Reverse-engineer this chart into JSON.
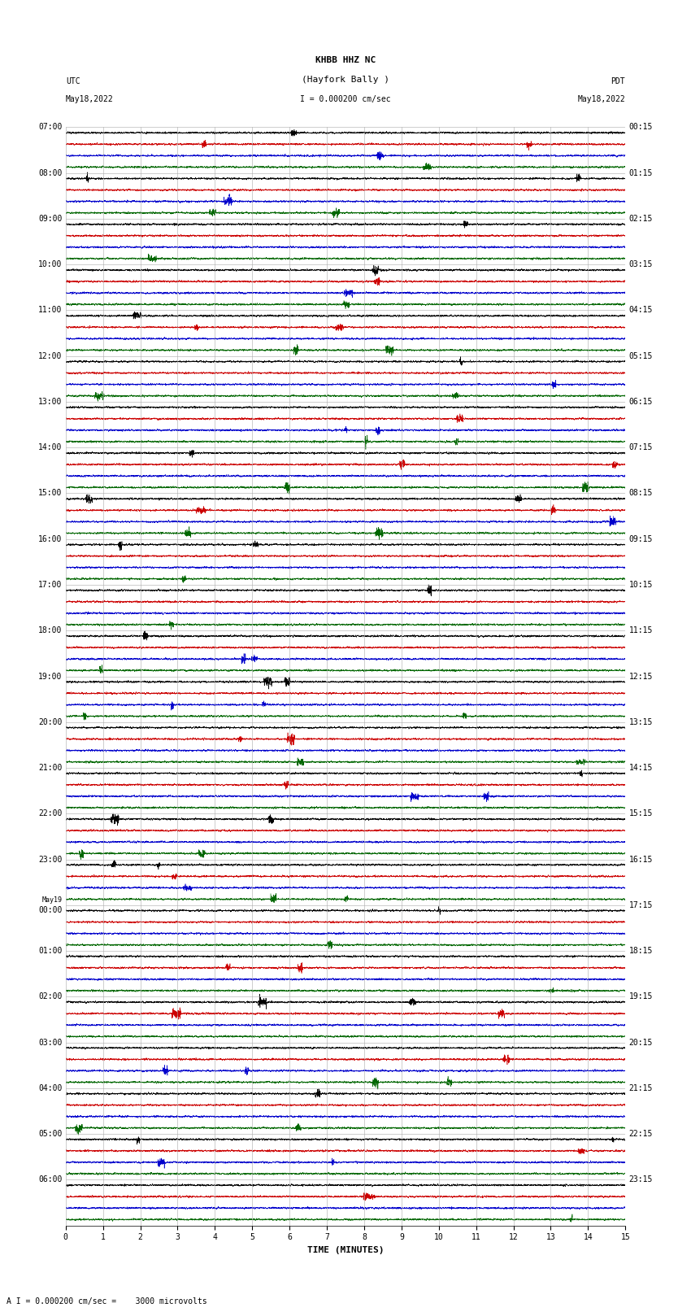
{
  "title_line1": "KHBB HHZ NC",
  "title_line2": "(Hayfork Bally )",
  "scale_text": "I = 0.000200 cm/sec",
  "bottom_text": "A I = 0.000200 cm/sec =    3000 microvolts",
  "utc_label": "UTC",
  "pdt_label": "PDT",
  "date_left": "May18,2022",
  "date_right": "May18,2022",
  "xlabel": "TIME (MINUTES)",
  "bg_color": "#ffffff",
  "trace_colors": [
    "#000000",
    "#cc0000",
    "#0000cc",
    "#006600"
  ],
  "num_rows": 24,
  "minutes_per_row": 15,
  "left_times_utc": [
    "07:00",
    "08:00",
    "09:00",
    "10:00",
    "11:00",
    "12:00",
    "13:00",
    "14:00",
    "15:00",
    "16:00",
    "17:00",
    "18:00",
    "19:00",
    "20:00",
    "21:00",
    "22:00",
    "23:00",
    "May19|00:00",
    "01:00",
    "02:00",
    "03:00",
    "04:00",
    "05:00",
    "06:00"
  ],
  "right_times_pdt": [
    "00:15",
    "01:15",
    "02:15",
    "03:15",
    "04:15",
    "05:15",
    "06:15",
    "07:15",
    "08:15",
    "09:15",
    "10:15",
    "11:15",
    "12:15",
    "13:15",
    "14:15",
    "15:15",
    "16:15",
    "17:15",
    "18:15",
    "19:15",
    "20:15",
    "21:15",
    "22:15",
    "23:15"
  ],
  "x_ticks": [
    0,
    1,
    2,
    3,
    4,
    5,
    6,
    7,
    8,
    9,
    10,
    11,
    12,
    13,
    14,
    15
  ],
  "grid_color": "#aaaaaa",
  "trace_linewidth": 0.4,
  "font_size": 7,
  "title_font_size": 8,
  "header_font": "monospace",
  "figsize": [
    8.5,
    16.13
  ],
  "dpi": 100
}
